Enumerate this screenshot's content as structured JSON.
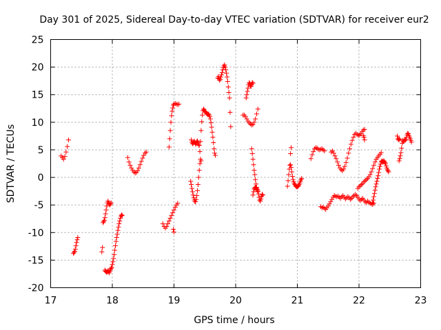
{
  "chart_data": {
    "type": "scatter",
    "title": "Day 301 of 2025, Sidereal Day-to-day VTEC variation (SDTVAR) for receiver eur2",
    "xlabel": "GPS time / hours",
    "ylabel": "SDTVAR / TECUs",
    "xlim": [
      17,
      23
    ],
    "ylim": [
      -20,
      25
    ],
    "xticks": [
      17,
      18,
      19,
      20,
      21,
      22,
      23
    ],
    "yticks": [
      -20,
      -15,
      -10,
      -5,
      0,
      5,
      10,
      15,
      20,
      25
    ],
    "grid": true,
    "marker": "+",
    "color": "#ff0000",
    "series": [
      {
        "name": "s1",
        "x": [
          17.17,
          17.19,
          17.21,
          17.23,
          17.25,
          17.27,
          17.29
        ],
        "y": [
          3.9,
          3.6,
          3.3,
          3.8,
          4.6,
          5.6,
          6.8
        ]
      },
      {
        "name": "s2",
        "x": [
          17.37,
          17.38,
          17.39,
          17.4,
          17.41,
          17.42,
          17.43,
          17.44
        ],
        "y": [
          -13.8,
          -13.6,
          -13.4,
          -13.0,
          -12.4,
          -11.8,
          -11.3,
          -10.9
        ]
      },
      {
        "name": "s3",
        "x": [
          17.83,
          17.84
        ],
        "y": [
          -13.5,
          -12.7
        ]
      },
      {
        "name": "s4",
        "x": [
          17.85,
          17.86,
          17.87,
          17.88,
          17.89,
          17.9,
          17.91,
          17.92,
          17.93,
          17.94,
          17.95,
          17.96,
          17.97,
          17.98
        ],
        "y": [
          -8.2,
          -8.0,
          -7.8,
          -7.3,
          -6.6,
          -5.9,
          -5.2,
          -4.6,
          -4.3,
          -4.6,
          -4.8,
          -5.0,
          -4.8,
          -4.6
        ]
      },
      {
        "name": "s5",
        "x": [
          17.88,
          17.89,
          17.9,
          17.91,
          17.92,
          17.93,
          17.94,
          17.95,
          17.96,
          17.97,
          17.98,
          17.99,
          18.0,
          18.01,
          18.02,
          18.03,
          18.04,
          18.05,
          18.06,
          18.07,
          18.08,
          18.09,
          18.1,
          18.11,
          18.12,
          18.13,
          18.14,
          18.15,
          18.16
        ],
        "y": [
          -16.8,
          -17.0,
          -17.1,
          -17.2,
          -17.1,
          -16.9,
          -17.1,
          -17.3,
          -17.0,
          -16.7,
          -16.5,
          -16.3,
          -15.8,
          -15.3,
          -14.7,
          -14.0,
          -13.2,
          -12.4,
          -11.6,
          -10.9,
          -10.3,
          -9.6,
          -9.0,
          -8.4,
          -7.9,
          -7.4,
          -7.0,
          -6.8,
          -6.9
        ]
      },
      {
        "name": "s6",
        "x": [
          18.25,
          18.27,
          18.29,
          18.31,
          18.33,
          18.35,
          18.37,
          18.39,
          18.41,
          18.43,
          18.45,
          18.47,
          18.49,
          18.51,
          18.53,
          18.55
        ],
        "y": [
          3.6,
          2.8,
          2.2,
          1.7,
          1.3,
          1.0,
          0.8,
          0.9,
          1.2,
          1.7,
          2.3,
          2.9,
          3.5,
          4.0,
          4.4,
          4.6
        ]
      },
      {
        "name": "s7",
        "x": [
          18.82,
          18.84,
          18.86,
          18.88,
          18.9,
          18.92,
          18.94,
          18.96,
          18.98,
          19.0,
          19.02,
          19.04,
          19.06
        ],
        "y": [
          -8.4,
          -8.9,
          -9.2,
          -8.9,
          -8.4,
          -7.9,
          -7.4,
          -6.9,
          -6.4,
          -5.9,
          -5.4,
          -5.0,
          -4.7
        ]
      },
      {
        "name": "s8",
        "x": [
          18.99,
          19.0
        ],
        "y": [
          -9.4,
          -9.9
        ]
      },
      {
        "name": "s9",
        "x": [
          18.92,
          18.93,
          18.94,
          18.95,
          18.96,
          18.97,
          18.98,
          18.99,
          19.0,
          19.02,
          19.04,
          19.06,
          19.08
        ],
        "y": [
          5.5,
          7.0,
          8.5,
          10.0,
          11.2,
          12.0,
          12.6,
          13.1,
          13.3,
          13.4,
          13.3,
          13.2,
          13.3
        ]
      },
      {
        "name": "s10",
        "x": [
          19.27,
          19.28,
          19.29,
          19.3,
          19.31,
          19.32,
          19.33,
          19.34,
          19.35,
          19.36,
          19.37,
          19.38,
          19.39,
          19.4,
          19.41,
          19.42,
          19.43,
          19.44
        ],
        "y": [
          -0.7,
          -1.3,
          -2.0,
          -2.6,
          -3.2,
          -3.7,
          -4.1,
          -4.4,
          -4.4,
          -4.0,
          -3.3,
          -2.4,
          -1.3,
          0.0,
          1.3,
          2.5,
          3.3,
          3.0
        ]
      },
      {
        "name": "s11",
        "x": [
          19.28,
          19.29,
          19.3,
          19.31,
          19.32,
          19.33,
          19.34,
          19.35,
          19.36,
          19.37,
          19.38,
          19.39,
          19.4,
          19.41
        ],
        "y": [
          6.8,
          6.4,
          6.1,
          6.2,
          6.4,
          6.6,
          6.3,
          6.0,
          6.2,
          6.5,
          6.6,
          6.3,
          5.9,
          5.8
        ]
      },
      {
        "name": "s12",
        "x": [
          19.42,
          19.43,
          19.44,
          19.45,
          19.46,
          19.47,
          19.48,
          19.49,
          19.5,
          19.51,
          19.52,
          19.53,
          19.54,
          19.55,
          19.56,
          19.57,
          19.58,
          19.59,
          19.6,
          19.61,
          19.62,
          19.63,
          19.64,
          19.65,
          19.66,
          19.67
        ],
        "y": [
          4.7,
          6.5,
          8.5,
          10.1,
          11.3,
          12.1,
          12.4,
          12.2,
          12.0,
          11.9,
          11.7,
          11.6,
          11.5,
          11.4,
          11.5,
          11.3,
          11.0,
          10.6,
          9.9,
          9.1,
          8.2,
          7.3,
          6.3,
          5.2,
          4.4,
          4.0
        ]
      },
      {
        "name": "s13",
        "x": [
          19.71,
          19.72,
          19.73,
          19.74,
          19.75,
          19.76,
          19.77,
          19.78,
          19.79,
          19.8,
          19.81,
          19.82,
          19.83,
          19.84,
          19.85,
          19.86,
          19.87,
          19.88,
          19.89,
          19.9,
          19.91,
          19.92
        ],
        "y": [
          18.0,
          18.3,
          17.9,
          17.6,
          17.8,
          18.2,
          18.6,
          19.0,
          19.5,
          19.9,
          20.2,
          20.4,
          20.0,
          19.5,
          18.9,
          18.2,
          17.4,
          16.4,
          15.4,
          14.4,
          11.8,
          9.2
        ]
      },
      {
        "name": "s14",
        "x": [
          20.12,
          20.14,
          20.16,
          20.18,
          20.2,
          20.22,
          20.24,
          20.26,
          20.28,
          20.3,
          20.32,
          20.34,
          20.36
        ],
        "y": [
          11.3,
          11.3,
          11.0,
          10.6,
          10.2,
          9.9,
          9.7,
          9.5,
          9.6,
          10.0,
          10.6,
          11.5,
          12.4
        ]
      },
      {
        "name": "s15",
        "x": [
          20.17,
          20.18,
          20.19,
          20.2,
          20.21,
          20.22,
          20.23,
          20.24,
          20.25,
          20.26,
          20.27,
          20.28
        ],
        "y": [
          14.4,
          15.0,
          15.6,
          16.2,
          16.8,
          17.2,
          17.0,
          16.6,
          16.5,
          16.9,
          17.2,
          17.1
        ]
      },
      {
        "name": "s16",
        "x": [
          20.26,
          20.27,
          20.28,
          20.29,
          20.3,
          20.31,
          20.32,
          20.33,
          20.34,
          20.35,
          20.36
        ],
        "y": [
          5.2,
          4.3,
          3.3,
          2.3,
          1.3,
          0.5,
          -0.4,
          -1.2,
          -1.8,
          -2.3,
          -2.6
        ]
      },
      {
        "name": "s17",
        "x": [
          20.28,
          20.29,
          20.3,
          20.31,
          20.32,
          20.33,
          20.34,
          20.35,
          20.36,
          20.37,
          20.38,
          20.39,
          20.4,
          20.41,
          20.42,
          20.43,
          20.44
        ],
        "y": [
          -3.2,
          -2.6,
          -2.1,
          -1.9,
          -1.8,
          -1.9,
          -2.0,
          -2.2,
          -2.5,
          -3.0,
          -3.6,
          -4.1,
          -4.3,
          -3.9,
          -3.4,
          -3.1,
          -3.2
        ]
      },
      {
        "name": "s18",
        "x": [
          20.84,
          20.85,
          20.86,
          20.87,
          20.88,
          20.89,
          20.9,
          20.91,
          20.92,
          20.93,
          20.94,
          20.95,
          20.96,
          20.97,
          20.98,
          20.99,
          21.0,
          21.01,
          21.02,
          21.03,
          21.04,
          21.05,
          21.06,
          21.07
        ],
        "y": [
          -1.6,
          -0.6,
          0.5,
          1.5,
          2.2,
          2.3,
          1.8,
          1.0,
          0.2,
          -0.4,
          -0.8,
          -1.1,
          -1.3,
          -1.5,
          -1.6,
          -1.7,
          -1.7,
          -1.6,
          -1.5,
          -1.3,
          -1.0,
          -0.7,
          -0.4,
          -0.2
        ]
      },
      {
        "name": "s19",
        "x": [
          20.89,
          20.9
        ],
        "y": [
          4.3,
          5.4
        ]
      },
      {
        "name": "s20",
        "x": [
          21.22,
          21.24,
          21.26,
          21.28,
          21.3,
          21.32,
          21.34,
          21.36,
          21.38,
          21.4,
          21.42,
          21.44
        ],
        "y": [
          3.4,
          4.1,
          4.7,
          5.2,
          5.4,
          5.3,
          5.1,
          5.0,
          5.1,
          5.2,
          5.0,
          4.8
        ]
      },
      {
        "name": "s21",
        "x": [
          21.38,
          21.4,
          21.42,
          21.44,
          21.46,
          21.48,
          21.5,
          21.52,
          21.54,
          21.56,
          21.58,
          21.6,
          21.62,
          21.64,
          21.66,
          21.68,
          21.7,
          21.72,
          21.74,
          21.76,
          21.78,
          21.8,
          21.82,
          21.84,
          21.86,
          21.88,
          21.9,
          21.92,
          21.94,
          21.96,
          21.98,
          22.0,
          22.02,
          22.04,
          22.06,
          22.08,
          22.1,
          22.12,
          22.14,
          22.16,
          22.18,
          22.2,
          22.22,
          22.24
        ],
        "y": [
          -5.3,
          -5.5,
          -5.4,
          -5.6,
          -5.8,
          -5.5,
          -5.2,
          -4.8,
          -4.4,
          -4.0,
          -3.6,
          -3.3,
          -3.4,
          -3.5,
          -3.4,
          -3.6,
          -3.8,
          -3.5,
          -3.3,
          -3.6,
          -3.9,
          -3.7,
          -3.5,
          -3.7,
          -4.0,
          -3.8,
          -3.5,
          -3.3,
          -3.1,
          -3.3,
          -3.6,
          -3.9,
          -4.2,
          -4.0,
          -3.8,
          -4.1,
          -4.4,
          -4.6,
          -4.3,
          -4.5,
          -4.7,
          -4.8,
          -4.9,
          -4.7
        ]
      },
      {
        "name": "s22",
        "x": [
          21.55,
          21.57,
          21.59,
          21.61,
          21.63,
          21.65,
          21.67,
          21.69,
          21.71,
          21.73,
          21.75,
          21.77,
          21.79,
          21.81,
          21.83,
          21.85,
          21.87,
          21.89,
          21.91,
          21.93,
          21.95,
          21.97,
          21.99,
          22.01,
          22.03,
          22.05,
          22.07,
          22.09
        ],
        "y": [
          4.6,
          4.8,
          4.4,
          3.9,
          3.4,
          2.8,
          2.2,
          1.7,
          1.4,
          1.2,
          1.5,
          2.0,
          2.7,
          3.5,
          4.4,
          5.2,
          6.0,
          6.7,
          7.3,
          7.8,
          8.0,
          7.8,
          7.6,
          7.7,
          7.9,
          8.3,
          8.6,
          8.7
        ]
      },
      {
        "name": "s23",
        "x": [
          22.07,
          22.08,
          22.09
        ],
        "y": [
          7.6,
          7.3,
          6.8
        ]
      },
      {
        "name": "s24",
        "x": [
          21.98,
          22.0,
          22.02,
          22.04,
          22.06,
          22.08,
          22.1,
          22.12,
          22.14,
          22.16,
          22.18,
          22.2,
          22.22,
          22.24,
          22.26,
          22.28,
          22.3,
          22.32,
          22.34,
          22.36
        ],
        "y": [
          -2.0,
          -1.7,
          -1.5,
          -1.3,
          -1.1,
          -0.8,
          -0.6,
          -0.4,
          -0.2,
          0.1,
          0.5,
          1.0,
          1.6,
          2.2,
          2.8,
          3.3,
          3.6,
          3.9,
          4.2,
          4.5
        ]
      },
      {
        "name": "s25",
        "x": [
          22.22,
          22.23,
          22.24,
          22.25,
          22.26,
          22.27,
          22.28,
          22.29,
          22.3,
          22.31,
          22.32,
          22.33,
          22.34,
          22.35,
          22.36,
          22.37,
          22.38,
          22.39,
          22.4,
          22.41,
          22.42,
          22.43,
          22.44,
          22.45,
          22.46,
          22.47,
          22.48
        ],
        "y": [
          -4.6,
          -4.1,
          -3.5,
          -2.9,
          -2.3,
          -1.7,
          -1.2,
          -0.7,
          -0.2,
          0.3,
          0.9,
          1.5,
          2.0,
          2.4,
          2.8,
          3.0,
          2.9,
          2.8,
          3.0,
          2.9,
          2.7,
          2.5,
          2.1,
          1.7,
          1.4,
          1.2,
          1.0
        ]
      },
      {
        "name": "s26",
        "x": [
          22.65,
          22.66,
          22.67,
          22.68,
          22.69,
          22.7,
          22.71,
          22.72,
          22.73,
          22.74,
          22.75,
          22.76,
          22.77,
          22.78,
          22.79,
          22.8,
          22.81,
          22.82,
          22.83,
          22.84,
          22.85
        ],
        "y": [
          3.0,
          3.4,
          3.9,
          4.5,
          5.3,
          6.2,
          6.7,
          6.5,
          6.6,
          6.9,
          6.7,
          6.9,
          7.3,
          7.7,
          8.0,
          7.9,
          7.6,
          7.3,
          7.0,
          6.7,
          6.4
        ]
      },
      {
        "name": "s27",
        "x": [
          22.62,
          22.63,
          22.64,
          22.65,
          22.66
        ],
        "y": [
          7.5,
          7.0,
          6.8,
          7.0,
          6.9
        ]
      }
    ]
  }
}
